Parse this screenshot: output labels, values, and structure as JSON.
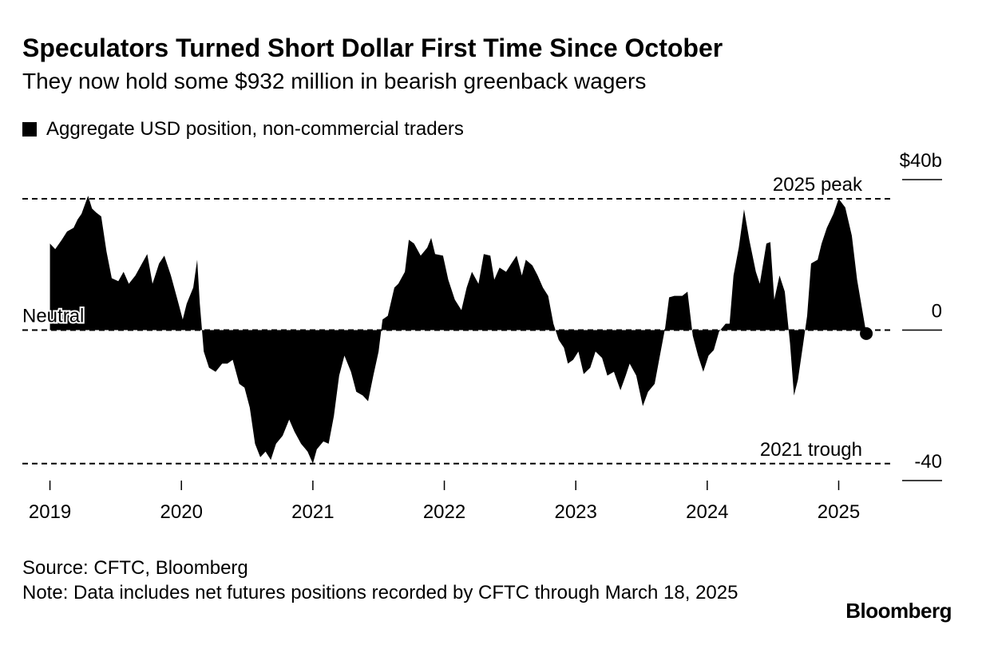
{
  "chart_data": {
    "type": "area",
    "title": "Speculators Turned Short Dollar First Time Since October",
    "subtitle": "They now hold some $932 million in bearish greenback wagers",
    "source": "Source: CFTC, Bloomberg",
    "note": "Note: Data includes net futures positions recorded by CFTC through March 18, 2025",
    "brand": "Bloomberg",
    "xlim": [
      2018.79,
      2025.41
    ],
    "xticks": [
      2019,
      2020,
      2021,
      2022,
      2023,
      2024,
      2025
    ],
    "ylim": [
      -40,
      40
    ],
    "yticks": [
      {
        "value": 40,
        "label": "$40b"
      },
      0,
      -40
    ],
    "annotations": [
      {
        "label": "2025 peak",
        "value": 34.9
      },
      {
        "label": "2021 trough",
        "value": -35.5
      },
      {
        "label": "Neutral",
        "value": 0
      }
    ],
    "series": [
      {
        "name": "Aggregate USD position, non-commercial traders",
        "color": "#000000",
        "x": [
          2019.0,
          2019.04,
          2019.09,
          2019.13,
          2019.18,
          2019.21,
          2019.24,
          2019.29,
          2019.32,
          2019.35,
          2019.39,
          2019.43,
          2019.47,
          2019.52,
          2019.56,
          2019.6,
          2019.65,
          2019.7,
          2019.74,
          2019.78,
          2019.83,
          2019.87,
          2019.92,
          2019.97,
          2020.01,
          2020.04,
          2020.09,
          2020.12,
          2020.14,
          2020.17,
          2020.21,
          2020.26,
          2020.31,
          2020.35,
          2020.39,
          2020.44,
          2020.48,
          2020.52,
          2020.56,
          2020.6,
          2020.64,
          2020.68,
          2020.72,
          2020.77,
          2020.82,
          2020.86,
          2020.91,
          2020.96,
          2021.0,
          2021.03,
          2021.08,
          2021.12,
          2021.16,
          2021.2,
          2021.24,
          2021.29,
          2021.33,
          2021.38,
          2021.42,
          2021.46,
          2021.5,
          2021.53,
          2021.57,
          2021.62,
          2021.65,
          2021.7,
          2021.73,
          2021.77,
          2021.82,
          2021.87,
          2021.9,
          2021.93,
          2021.99,
          2022.03,
          2022.08,
          2022.13,
          2022.17,
          2022.21,
          2022.26,
          2022.3,
          2022.35,
          2022.38,
          2022.42,
          2022.47,
          2022.51,
          2022.55,
          2022.59,
          2022.62,
          2022.67,
          2022.71,
          2022.75,
          2022.79,
          2022.83,
          2022.87,
          2022.91,
          2022.94,
          2022.98,
          2023.02,
          2023.06,
          2023.11,
          2023.15,
          2023.2,
          2023.24,
          2023.29,
          2023.34,
          2023.38,
          2023.41,
          2023.46,
          2023.51,
          2023.55,
          2023.6,
          2023.64,
          2023.68,
          2023.71,
          2023.75,
          2023.81,
          2023.85,
          2023.89,
          2023.93,
          2023.97,
          2024.01,
          2024.05,
          2024.09,
          2024.14,
          2024.17,
          2024.2,
          2024.24,
          2024.28,
          2024.32,
          2024.37,
          2024.4,
          2024.45,
          2024.48,
          2024.51,
          2024.55,
          2024.59,
          2024.63,
          2024.66,
          2024.69,
          2024.73,
          2024.76,
          2024.79,
          2024.84,
          2024.87,
          2024.91,
          2024.96,
          2025.0,
          2025.05,
          2025.1,
          2025.14,
          2025.21
        ],
        "values": [
          23.0,
          21.5,
          24.0,
          26.2,
          27.2,
          29.4,
          30.9,
          35.7,
          32.3,
          31.3,
          30.2,
          20.9,
          13.8,
          13.0,
          15.5,
          12.3,
          14.5,
          17.7,
          20.2,
          12.3,
          17.7,
          19.8,
          14.5,
          8.1,
          2.8,
          7.0,
          11.3,
          18.7,
          7.0,
          -5.7,
          -10.0,
          -11.1,
          -8.9,
          -8.9,
          -7.9,
          -14.3,
          -15.3,
          -20.6,
          -30.2,
          -33.8,
          -32.3,
          -34.5,
          -30.2,
          -28.1,
          -23.8,
          -27.0,
          -30.2,
          -32.3,
          -35.5,
          -31.7,
          -29.6,
          -30.2,
          -22.8,
          -12.1,
          -6.8,
          -11.1,
          -16.4,
          -17.4,
          -18.9,
          -12.1,
          -5.7,
          2.8,
          3.8,
          11.3,
          12.3,
          15.5,
          24.0,
          23.0,
          19.8,
          21.9,
          24.5,
          20.2,
          19.8,
          13.4,
          8.1,
          5.3,
          11.3,
          15.5,
          12.3,
          20.2,
          19.8,
          13.4,
          16.6,
          15.5,
          17.7,
          19.8,
          14.5,
          18.7,
          17.2,
          14.5,
          11.3,
          9.1,
          1.7,
          -2.6,
          -4.7,
          -8.9,
          -7.9,
          -5.7,
          -11.7,
          -10.0,
          -5.7,
          -7.4,
          -12.1,
          -11.1,
          -16.0,
          -12.1,
          -8.9,
          -12.1,
          -20.2,
          -16.4,
          -14.3,
          -6.8,
          0.6,
          8.7,
          9.1,
          9.1,
          10.2,
          -1.5,
          -6.8,
          -11.1,
          -6.8,
          -5.3,
          -0.4,
          1.7,
          1.7,
          14.5,
          21.9,
          32.1,
          24.0,
          15.5,
          12.3,
          23.0,
          23.4,
          8.1,
          14.5,
          10.2,
          -3.6,
          -17.4,
          -13.2,
          -3.6,
          3.8,
          17.7,
          18.7,
          23.0,
          27.2,
          30.9,
          34.9,
          32.6,
          25.1,
          13.4,
          -0.93
        ]
      }
    ]
  }
}
